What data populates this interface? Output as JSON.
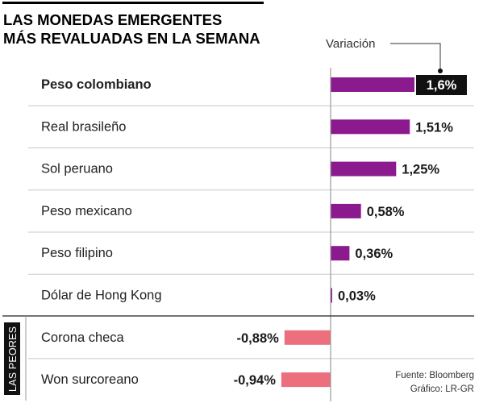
{
  "title_lines": [
    "LAS MONEDAS EMERGENTES",
    "MÁS REVALUADAS EN LA SEMANA"
  ],
  "variation_label": "Variación",
  "worst_group_label": "LAS PEORES",
  "source": "Fuente: Bloomberg",
  "credit": "Gráfico: LR-GR",
  "colors": {
    "positive": "#8b1a8e",
    "negative": "#ec6f7d",
    "highlight_bg": "#111111",
    "highlight_text": "#ffffff",
    "rule": "#c8c8c8",
    "axis": "#999999"
  },
  "chart_data": {
    "type": "bar",
    "orientation": "horizontal",
    "categories": [
      "Peso colombiano",
      "Real brasileño",
      "Sol peruano",
      "Peso mexicano",
      "Peso filipino",
      "Dólar de Hong Kong",
      "Corona checa",
      "Won surcoreano"
    ],
    "values": [
      1.6,
      1.51,
      1.25,
      0.58,
      0.36,
      0.03,
      -0.88,
      -0.94
    ],
    "value_labels": [
      "1,6%",
      "1,51%",
      "1,25%",
      "0,58%",
      "0,36%",
      "0,03%",
      "-0,88%",
      "-0,94%"
    ],
    "highlight_index": 0,
    "worst_start_index": 6,
    "unit": "%"
  }
}
